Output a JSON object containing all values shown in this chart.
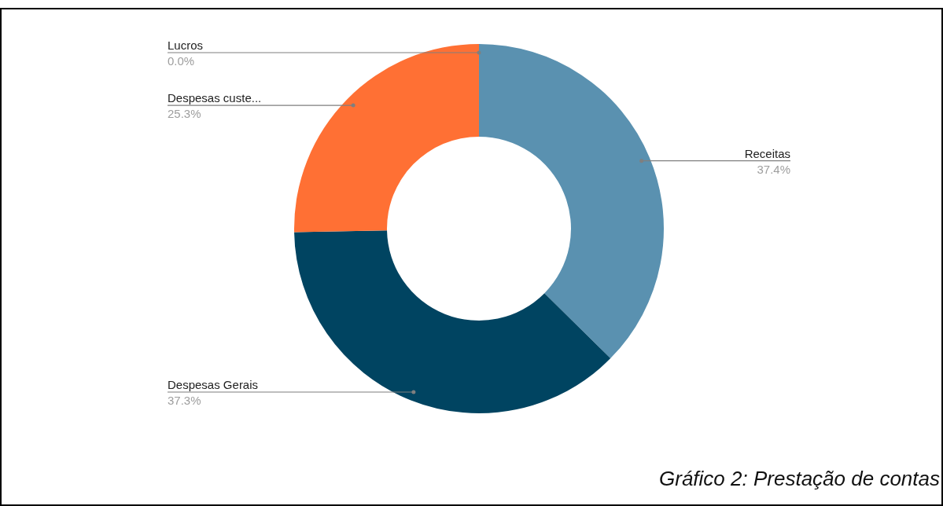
{
  "chart_data": {
    "type": "donut",
    "categories": [
      "Receitas",
      "Despesas Gerais",
      "Despesas custe...",
      "Lucros"
    ],
    "values": [
      37.4,
      37.3,
      25.3,
      0.0
    ],
    "colors": [
      "#5a91b0",
      "#004461",
      "#ff7034",
      "#c2c2c2"
    ],
    "value_labels": [
      "37.4%",
      "37.3%",
      "25.3%",
      "0.0%"
    ],
    "annotations": [
      "Gráfico 2: Prestação de contas"
    ]
  }
}
